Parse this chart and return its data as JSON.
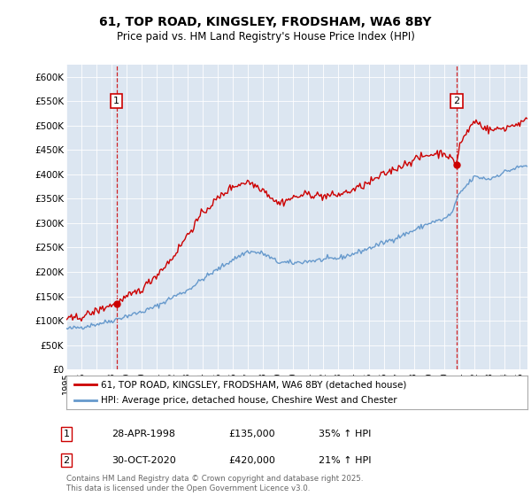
{
  "title_line1": "61, TOP ROAD, KINGSLEY, FRODSHAM, WA6 8BY",
  "title_line2": "Price paid vs. HM Land Registry's House Price Index (HPI)",
  "ylim": [
    0,
    625000
  ],
  "yticks": [
    0,
    50000,
    100000,
    150000,
    200000,
    250000,
    300000,
    350000,
    400000,
    450000,
    500000,
    550000,
    600000
  ],
  "ytick_labels": [
    "£0",
    "£50K",
    "£100K",
    "£150K",
    "£200K",
    "£250K",
    "£300K",
    "£350K",
    "£400K",
    "£450K",
    "£500K",
    "£550K",
    "£600K"
  ],
  "xlim_start": 1995.0,
  "xlim_end": 2025.5,
  "xticks": [
    1995,
    1996,
    1997,
    1998,
    1999,
    2000,
    2001,
    2002,
    2003,
    2004,
    2005,
    2006,
    2007,
    2008,
    2009,
    2010,
    2011,
    2012,
    2013,
    2014,
    2015,
    2016,
    2017,
    2018,
    2019,
    2020,
    2021,
    2022,
    2023,
    2024,
    2025
  ],
  "background_color": "#dce6f1",
  "fig_bg_color": "#ffffff",
  "line1_color": "#cc0000",
  "line2_color": "#6699cc",
  "marker1_x": 1998.32,
  "marker1_y": 135000,
  "marker2_x": 2020.83,
  "marker2_y": 420000,
  "marker1_date": "28-APR-1998",
  "marker1_price": "£135,000",
  "marker1_pct": "35% ↑ HPI",
  "marker2_date": "30-OCT-2020",
  "marker2_price": "£420,000",
  "marker2_pct": "21% ↑ HPI",
  "legend1_label": "61, TOP ROAD, KINGSLEY, FRODSHAM, WA6 8BY (detached house)",
  "legend2_label": "HPI: Average price, detached house, Cheshire West and Chester",
  "footer": "Contains HM Land Registry data © Crown copyright and database right 2025.\nThis data is licensed under the Open Government Licence v3.0."
}
